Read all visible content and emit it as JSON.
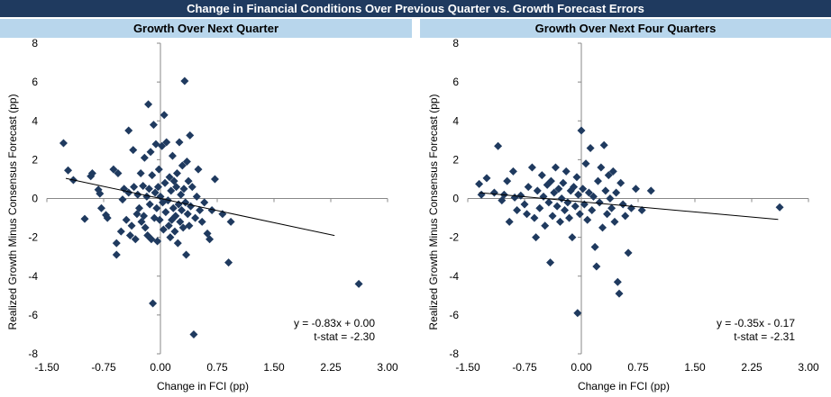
{
  "title": "Change in Financial Conditions Over Previous Quarter vs. Growth Forecast Errors",
  "chart_data": [
    {
      "type": "scatter",
      "title": "Growth Over Next Quarter",
      "xlabel": "Change in FCI (pp)",
      "ylabel": "Realized Growth Minus Consensus Forecast (pp)",
      "xlim": [
        -1.5,
        3.0
      ],
      "ylim": [
        -8,
        8
      ],
      "xticks": [
        "-1.50",
        "-0.75",
        "0.00",
        "0.75",
        "1.50",
        "2.25",
        "3.00"
      ],
      "yticks": [
        "-8",
        "-6",
        "-4",
        "-2",
        "0",
        "2",
        "4",
        "6",
        "8"
      ],
      "annotation": [
        "y = -0.83x + 0.00",
        "t-stat = -2.30"
      ],
      "trend": {
        "slope": -0.83,
        "intercept": 0.0,
        "x0": -1.25,
        "x1": 2.3
      },
      "marker_color": "#1f3a5f",
      "points": [
        [
          -1.28,
          2.85
        ],
        [
          -1.22,
          1.45
        ],
        [
          -1.15,
          0.95
        ],
        [
          -1.0,
          -1.05
        ],
        [
          -0.92,
          1.15
        ],
        [
          -0.9,
          1.3
        ],
        [
          -0.82,
          0.45
        ],
        [
          -0.8,
          0.25
        ],
        [
          -0.78,
          -0.5
        ],
        [
          -0.72,
          -0.85
        ],
        [
          -0.7,
          -1.0
        ],
        [
          -0.62,
          1.5
        ],
        [
          -0.58,
          -2.3
        ],
        [
          -0.58,
          -2.9
        ],
        [
          -0.56,
          1.3
        ],
        [
          -0.52,
          -1.7
        ],
        [
          -0.5,
          -0.05
        ],
        [
          -0.48,
          0.5
        ],
        [
          -0.45,
          -1.1
        ],
        [
          -0.42,
          0.3
        ],
        [
          -0.42,
          3.5
        ],
        [
          -0.4,
          -1.9
        ],
        [
          -0.38,
          -1.4
        ],
        [
          -0.36,
          2.5
        ],
        [
          -0.35,
          0.6
        ],
        [
          -0.33,
          -2.1
        ],
        [
          -0.31,
          -0.8
        ],
        [
          -0.3,
          0.2
        ],
        [
          -0.28,
          -0.5
        ],
        [
          -0.26,
          1.3
        ],
        [
          -0.25,
          -1.2
        ],
        [
          -0.23,
          0.65
        ],
        [
          -0.22,
          -0.9
        ],
        [
          -0.21,
          2.1
        ],
        [
          -0.2,
          -1.5
        ],
        [
          -0.18,
          0.1
        ],
        [
          -0.17,
          -1.9
        ],
        [
          -0.16,
          4.85
        ],
        [
          -0.15,
          0.5
        ],
        [
          -0.14,
          -0.3
        ],
        [
          -0.13,
          2.4
        ],
        [
          -0.12,
          -2.1
        ],
        [
          -0.11,
          1.2
        ],
        [
          -0.1,
          -5.4
        ],
        [
          -0.09,
          3.8
        ],
        [
          -0.08,
          -1.0
        ],
        [
          -0.07,
          0.3
        ],
        [
          -0.06,
          2.8
        ],
        [
          -0.05,
          -0.5
        ],
        [
          -0.04,
          -2.2
        ],
        [
          -0.03,
          0.6
        ],
        [
          -0.02,
          1.5
        ],
        [
          -0.01,
          -1.1
        ],
        [
          0.0,
          0.1
        ],
        [
          0.02,
          2.7
        ],
        [
          0.03,
          -0.2
        ],
        [
          0.04,
          -1.6
        ],
        [
          0.05,
          4.3
        ],
        [
          0.06,
          0.8
        ],
        [
          0.07,
          -0.7
        ],
        [
          0.08,
          2.9
        ],
        [
          0.1,
          -0.1
        ],
        [
          0.11,
          -1.4
        ],
        [
          0.12,
          1.1
        ],
        [
          0.13,
          -2.0
        ],
        [
          0.14,
          0.4
        ],
        [
          0.15,
          -1.1
        ],
        [
          0.16,
          2.2
        ],
        [
          0.17,
          -0.5
        ],
        [
          0.18,
          0.9
        ],
        [
          0.19,
          -1.7
        ],
        [
          0.2,
          -0.9
        ],
        [
          0.21,
          0.6
        ],
        [
          0.22,
          1.3
        ],
        [
          0.23,
          -2.3
        ],
        [
          0.24,
          -0.3
        ],
        [
          0.25,
          2.9
        ],
        [
          0.26,
          -1.2
        ],
        [
          0.27,
          0.2
        ],
        [
          0.28,
          -0.6
        ],
        [
          0.29,
          1.7
        ],
        [
          0.3,
          -1.5
        ],
        [
          0.31,
          0.5
        ],
        [
          0.32,
          6.05
        ],
        [
          0.33,
          -0.2
        ],
        [
          0.34,
          -2.9
        ],
        [
          0.35,
          1.9
        ],
        [
          0.36,
          -0.8
        ],
        [
          0.37,
          0.9
        ],
        [
          0.38,
          -1.4
        ],
        [
          0.39,
          3.25
        ],
        [
          0.4,
          -0.4
        ],
        [
          0.42,
          0.6
        ],
        [
          0.44,
          -7.0
        ],
        [
          0.46,
          -1.0
        ],
        [
          0.48,
          0.1
        ],
        [
          0.5,
          1.5
        ],
        [
          0.52,
          -0.6
        ],
        [
          0.55,
          -1.2
        ],
        [
          0.58,
          -0.2
        ],
        [
          0.62,
          -1.8
        ],
        [
          0.65,
          -2.1
        ],
        [
          0.68,
          -0.6
        ],
        [
          0.72,
          1.0
        ],
        [
          0.82,
          -0.8
        ],
        [
          0.9,
          -3.3
        ],
        [
          0.93,
          -1.2
        ],
        [
          2.62,
          -4.4
        ]
      ]
    },
    {
      "type": "scatter",
      "title": "Growth Over Next Four Quarters",
      "xlabel": "Change  in FCI  (pp)",
      "ylabel": "Realized Growth Minus Consensus Forecast (pp)",
      "xlim": [
        -1.5,
        3.0
      ],
      "ylim": [
        -8,
        8
      ],
      "xticks": [
        "-1.50",
        "-0.75",
        "0.00",
        "0.75",
        "1.50",
        "2.25",
        "3.00"
      ],
      "yticks": [
        "-8",
        "-6",
        "-4",
        "-2",
        "0",
        "2",
        "4",
        "6",
        "8"
      ],
      "annotation": [
        "y = -0.35x - 0.17",
        "t-stat = -2.31"
      ],
      "trend": {
        "slope": -0.35,
        "intercept": -0.17,
        "x0": -1.35,
        "x1": 2.6
      },
      "marker_color": "#1f3a5f",
      "points": [
        [
          -1.35,
          0.75
        ],
        [
          -1.32,
          0.2
        ],
        [
          -1.25,
          1.05
        ],
        [
          -1.15,
          0.3
        ],
        [
          -1.1,
          2.7
        ],
        [
          -1.05,
          -0.1
        ],
        [
          -1.02,
          0.2
        ],
        [
          -0.98,
          0.9
        ],
        [
          -0.95,
          -1.2
        ],
        [
          -0.9,
          1.4
        ],
        [
          -0.88,
          0.05
        ],
        [
          -0.85,
          -0.6
        ],
        [
          -0.8,
          0.15
        ],
        [
          -0.75,
          -0.3
        ],
        [
          -0.72,
          -0.8
        ],
        [
          -0.7,
          0.6
        ],
        [
          -0.65,
          1.6
        ],
        [
          -0.62,
          -1.0
        ],
        [
          -0.6,
          -2.0
        ],
        [
          -0.58,
          0.4
        ],
        [
          -0.55,
          -0.5
        ],
        [
          -0.52,
          1.2
        ],
        [
          -0.5,
          0.1
        ],
        [
          -0.48,
          -1.4
        ],
        [
          -0.45,
          0.7
        ],
        [
          -0.43,
          -0.2
        ],
        [
          -0.41,
          -3.3
        ],
        [
          -0.4,
          0.9
        ],
        [
          -0.38,
          -0.9
        ],
        [
          -0.36,
          0.3
        ],
        [
          -0.34,
          1.6
        ],
        [
          -0.32,
          -0.4
        ],
        [
          -0.3,
          0.5
        ],
        [
          -0.28,
          -1.2
        ],
        [
          -0.26,
          0.0
        ],
        [
          -0.24,
          0.8
        ],
        [
          -0.22,
          -0.6
        ],
        [
          -0.2,
          1.4
        ],
        [
          -0.18,
          -0.2
        ],
        [
          -0.16,
          -1.0
        ],
        [
          -0.14,
          0.4
        ],
        [
          -0.12,
          -2.0
        ],
        [
          -0.1,
          0.6
        ],
        [
          -0.08,
          -0.4
        ],
        [
          -0.06,
          1.1
        ],
        [
          -0.05,
          -5.9
        ],
        [
          -0.04,
          0.2
        ],
        [
          -0.02,
          -0.8
        ],
        [
          0.0,
          3.5
        ],
        [
          0.02,
          0.5
        ],
        [
          0.04,
          -0.3
        ],
        [
          0.06,
          1.8
        ],
        [
          0.08,
          -1.1
        ],
        [
          0.1,
          0.3
        ],
        [
          0.12,
          2.6
        ],
        [
          0.14,
          -0.6
        ],
        [
          0.16,
          0.1
        ],
        [
          0.18,
          -2.5
        ],
        [
          0.2,
          -3.5
        ],
        [
          0.22,
          0.9
        ],
        [
          0.24,
          -0.2
        ],
        [
          0.26,
          1.6
        ],
        [
          0.28,
          -1.5
        ],
        [
          0.3,
          2.75
        ],
        [
          0.32,
          0.4
        ],
        [
          0.34,
          -0.8
        ],
        [
          0.36,
          1.2
        ],
        [
          0.38,
          0.0
        ],
        [
          0.4,
          -0.5
        ],
        [
          0.42,
          1.4
        ],
        [
          0.44,
          -1.2
        ],
        [
          0.46,
          0.3
        ],
        [
          0.48,
          -4.3
        ],
        [
          0.5,
          -4.9
        ],
        [
          0.52,
          0.8
        ],
        [
          0.55,
          -0.3
        ],
        [
          0.58,
          -0.9
        ],
        [
          0.62,
          -2.8
        ],
        [
          0.66,
          -0.5
        ],
        [
          0.72,
          0.5
        ],
        [
          0.8,
          -0.6
        ],
        [
          0.92,
          0.4
        ],
        [
          2.62,
          -0.45
        ]
      ]
    }
  ]
}
